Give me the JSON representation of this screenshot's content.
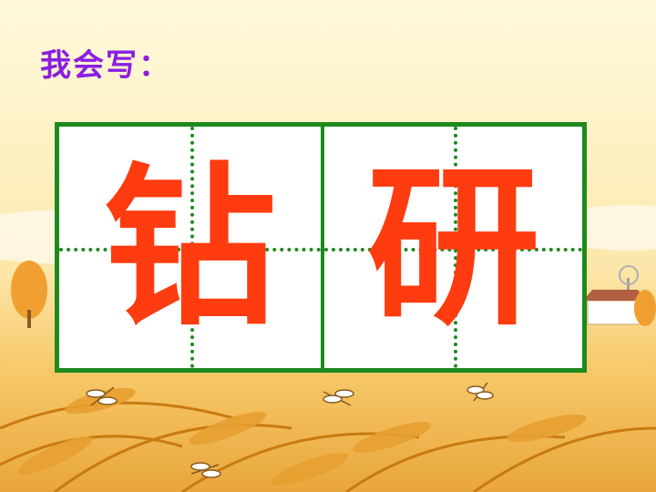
{
  "heading": "我会写：",
  "characters": [
    "钻",
    "研"
  ],
  "colors": {
    "heading": "#8a1ee0",
    "grid_border": "#1d8a1d",
    "character": "#ff3b10"
  },
  "icons": [
    "dragonfly-icon",
    "tree-icon",
    "windmill-icon",
    "farmhouse-icon",
    "wheat-icon"
  ]
}
